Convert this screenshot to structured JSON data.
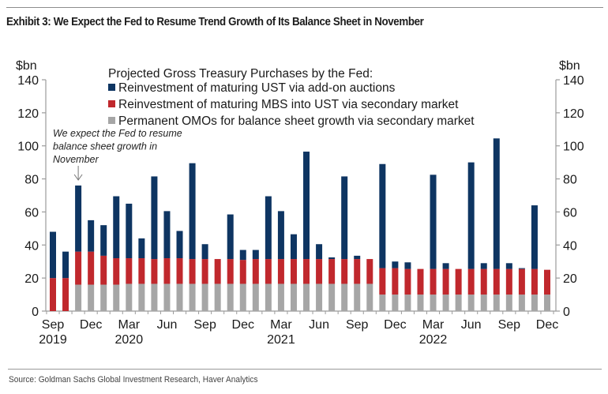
{
  "header": {
    "title": "Exhibit 3: We Expect the Fed to Resume Trend Growth of Its Balance Sheet in November"
  },
  "footer": {
    "source": "Source: Goldman Sachs Global Investment Research, Haver Analytics"
  },
  "chart_data": {
    "type": "bar",
    "stacked": true,
    "title": "Exhibit 3: We Expect the Fed to Resume Trend Growth of Its Balance Sheet in November",
    "legend_title": "Projected Gross Treasury Purchases by the Fed:",
    "legend_position": "top-center",
    "xlabel": "",
    "ylabel_left": "$bn",
    "ylabel_right": "$bn",
    "ylim": [
      0,
      140
    ],
    "yticks": [
      0,
      20,
      40,
      60,
      80,
      100,
      120,
      140
    ],
    "grid": false,
    "x_tick_labels": [
      {
        "index": 0,
        "label": "Sep",
        "year": "2019"
      },
      {
        "index": 3,
        "label": "Dec",
        "year": ""
      },
      {
        "index": 6,
        "label": "Mar",
        "year": "2020"
      },
      {
        "index": 9,
        "label": "Jun",
        "year": ""
      },
      {
        "index": 12,
        "label": "Sep",
        "year": ""
      },
      {
        "index": 15,
        "label": "Dec",
        "year": ""
      },
      {
        "index": 18,
        "label": "Mar",
        "year": "2021"
      },
      {
        "index": 21,
        "label": "Jun",
        "year": ""
      },
      {
        "index": 24,
        "label": "Sep",
        "year": ""
      },
      {
        "index": 27,
        "label": "Dec",
        "year": ""
      },
      {
        "index": 30,
        "label": "Mar",
        "year": "2022"
      },
      {
        "index": 33,
        "label": "Jun",
        "year": ""
      },
      {
        "index": 36,
        "label": "Sep",
        "year": ""
      },
      {
        "index": 39,
        "label": "Dec",
        "year": ""
      }
    ],
    "categories": [
      "Sep 2019",
      "Oct 2019",
      "Nov 2019",
      "Dec 2019",
      "Jan 2020",
      "Feb 2020",
      "Mar 2020",
      "Apr 2020",
      "May 2020",
      "Jun 2020",
      "Jul 2020",
      "Aug 2020",
      "Sep 2020",
      "Oct 2020",
      "Nov 2020",
      "Dec 2020",
      "Jan 2021",
      "Feb 2021",
      "Mar 2021",
      "Apr 2021",
      "May 2021",
      "Jun 2021",
      "Jul 2021",
      "Aug 2021",
      "Sep 2021",
      "Oct 2021",
      "Nov 2021",
      "Dec 2021",
      "Jan 2022",
      "Feb 2022",
      "Mar 2022",
      "Apr 2022",
      "May 2022",
      "Jun 2022",
      "Jul 2022",
      "Aug 2022",
      "Sep 2022",
      "Oct 2022",
      "Nov 2022",
      "Dec 2022"
    ],
    "series": [
      {
        "name": "Permanent OMOs for balance sheet growth via secondary market",
        "color": "#a6a6a6",
        "values": [
          0,
          0,
          16,
          16,
          16,
          16,
          16.5,
          16.5,
          16.5,
          16.5,
          16.5,
          16.5,
          16.5,
          16.5,
          16.5,
          16.5,
          16.5,
          16.5,
          16.5,
          16.5,
          16.5,
          16.5,
          16.5,
          16.5,
          16.5,
          16.5,
          10,
          10,
          10,
          10,
          10,
          10,
          10,
          10,
          10,
          10,
          10,
          10,
          10,
          10
        ]
      },
      {
        "name": "Reinvestment of maturing MBS into UST via secondary market",
        "color": "#c0282d",
        "values": [
          20,
          20,
          20,
          20,
          17.5,
          16,
          15.5,
          15.5,
          15,
          15.5,
          15.5,
          15,
          15,
          15,
          15,
          14.5,
          15,
          15,
          15,
          15,
          15,
          15,
          15,
          15,
          15,
          15,
          16,
          16,
          15.5,
          15.5,
          15.5,
          15.5,
          15.5,
          15.5,
          15.5,
          15.5,
          15.5,
          15.5,
          15.5,
          15
        ]
      },
      {
        "name": "Reinvestment of maturing UST via add-on auctions",
        "color": "#0e3562",
        "values": [
          28,
          16,
          40,
          19,
          18.5,
          37.5,
          33,
          12,
          50,
          28.5,
          16.5,
          58,
          9,
          0,
          27,
          6,
          5.5,
          38,
          29,
          15,
          65,
          9,
          1,
          50,
          2,
          0,
          63,
          4,
          4,
          0,
          57,
          3.5,
          0,
          64.5,
          3.5,
          79,
          3.5,
          0.5,
          38.5,
          0
        ]
      }
    ],
    "annotations": [
      {
        "text_lines": [
          "We expect the Fed  to resume",
          "balance sheet growth in",
          "November"
        ],
        "points_to": "Nov 2019",
        "arrow": "down-arrow"
      }
    ]
  }
}
